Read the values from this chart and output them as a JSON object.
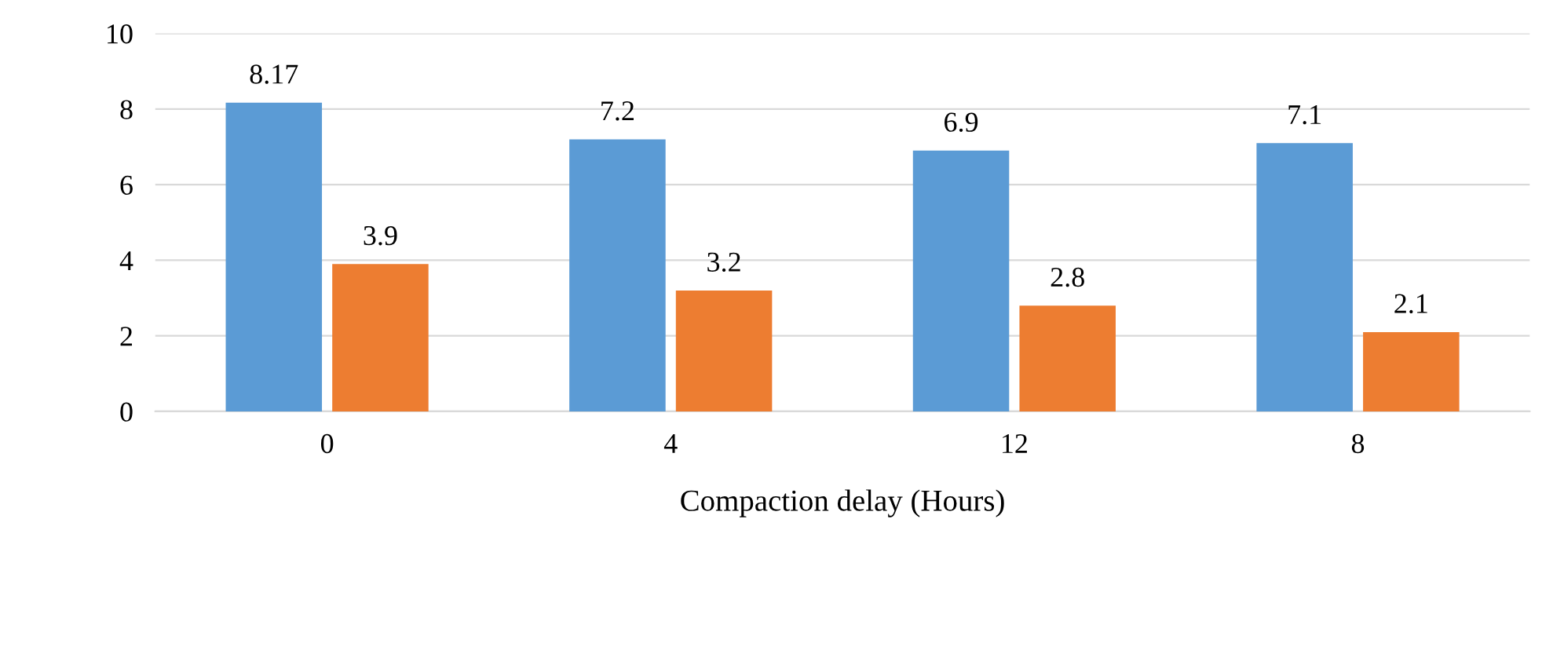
{
  "chart_data": {
    "type": "bar",
    "xlabel": "Compaction delay (Hours)",
    "categories": [
      "0",
      "4",
      "12",
      "8"
    ],
    "series": [
      {
        "color": "#5b9bd5",
        "values": [
          8.17,
          7.2,
          6.9,
          7.1
        ]
      },
      {
        "color": "#ed7d31",
        "values": [
          3.9,
          3.2,
          2.8,
          2.1
        ]
      }
    ],
    "ylim": [
      0,
      10
    ],
    "yticks": [
      0,
      2,
      4,
      6,
      8,
      10
    ],
    "grid": "y",
    "data_labels": true
  }
}
